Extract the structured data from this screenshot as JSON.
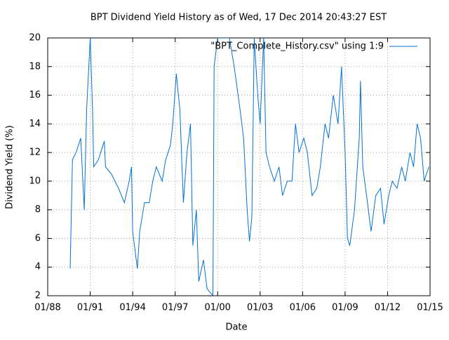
{
  "chart_data": {
    "type": "line",
    "title": "BPT Dividend Yield History as of Wed, 17 Dec 2014 20:43:27 EST",
    "xlabel": "Date",
    "ylabel": "Dividend Yield (%)",
    "x": [
      "1989-08",
      "1989-10",
      "1990-01",
      "1990-05",
      "1990-08",
      "1990-10",
      "1991-01",
      "1991-03",
      "1991-04",
      "1991-08",
      "1992-01",
      "1992-02",
      "1992-07",
      "1993-01",
      "1993-06",
      "1993-10",
      "1993-12",
      "1994-01",
      "1994-05",
      "1994-07",
      "1994-11",
      "1995-03",
      "1995-06",
      "1995-09",
      "1996-02",
      "1996-05",
      "1996-09",
      "1996-11",
      "1997-02",
      "1997-05",
      "1997-08",
      "1997-11",
      "1998-02",
      "1998-04",
      "1998-07",
      "1998-09",
      "1999-01",
      "1999-04",
      "1999-09",
      "1999-10",
      "2000-01",
      "2000-04",
      "2000-08",
      "2000-11",
      "2001-03",
      "2001-08",
      "2001-11",
      "2002-02",
      "2002-04",
      "2002-06",
      "2002-08",
      "2002-11",
      "2003-01",
      "2003-04",
      "2003-06",
      "2003-09",
      "2004-01",
      "2004-05",
      "2004-08",
      "2004-12",
      "2005-04",
      "2005-07",
      "2005-10",
      "2006-02",
      "2006-05",
      "2006-09",
      "2007-01",
      "2007-04",
      "2007-08",
      "2007-11",
      "2008-03",
      "2008-07",
      "2008-10",
      "2009-01",
      "2009-03",
      "2009-05",
      "2009-09",
      "2010-01",
      "2010-02",
      "2010-04",
      "2010-08",
      "2010-11",
      "2011-03",
      "2011-07",
      "2011-10",
      "2012-02",
      "2012-05",
      "2012-09",
      "2013-01",
      "2013-04",
      "2013-08",
      "2013-11",
      "2014-02",
      "2014-05",
      "2014-08",
      "2014-12"
    ],
    "series": [
      {
        "name": "\"BPT_Complete_History.csv\" using 1:9",
        "color": "#0072d4",
        "values": [
          3.9,
          11.5,
          12,
          13,
          8,
          15,
          20,
          15,
          11,
          11.5,
          12.8,
          11,
          10.5,
          9.5,
          8.5,
          10,
          11,
          6.5,
          3.9,
          6.5,
          8.5,
          8.5,
          10,
          11,
          10,
          11.5,
          12.5,
          14,
          17.5,
          15,
          8.5,
          12,
          14,
          5.5,
          8,
          3,
          4.5,
          2.5,
          2,
          18,
          20,
          20,
          20,
          20,
          18,
          15,
          13,
          8,
          5.8,
          7.5,
          20,
          16,
          14,
          20,
          12,
          11,
          10,
          11,
          9,
          10,
          10,
          14,
          12,
          13,
          12,
          9,
          9.5,
          11,
          14,
          13,
          16,
          14,
          18,
          12,
          6,
          5.5,
          8,
          13,
          17,
          11,
          8.5,
          6.5,
          9,
          9.5,
          7,
          9,
          10,
          9.5,
          11,
          10,
          12,
          11,
          14,
          13,
          10,
          11
        ]
      }
    ],
    "xlim": [
      "1988-01",
      "2015-01"
    ],
    "xticks": [
      {
        "value": "1988-01",
        "label": "01/88"
      },
      {
        "value": "1991-01",
        "label": "01/91"
      },
      {
        "value": "1994-01",
        "label": "01/94"
      },
      {
        "value": "1997-01",
        "label": "01/97"
      },
      {
        "value": "2000-01",
        "label": "01/00"
      },
      {
        "value": "2003-01",
        "label": "01/03"
      },
      {
        "value": "2006-01",
        "label": "01/06"
      },
      {
        "value": "2009-01",
        "label": "01/09"
      },
      {
        "value": "2012-01",
        "label": "01/12"
      },
      {
        "value": "2015-01",
        "label": "01/15"
      }
    ],
    "ylim": [
      2,
      20
    ],
    "yticks": [
      2,
      4,
      6,
      8,
      10,
      12,
      14,
      16,
      18,
      20
    ],
    "grid": true,
    "legend": "top-right"
  }
}
